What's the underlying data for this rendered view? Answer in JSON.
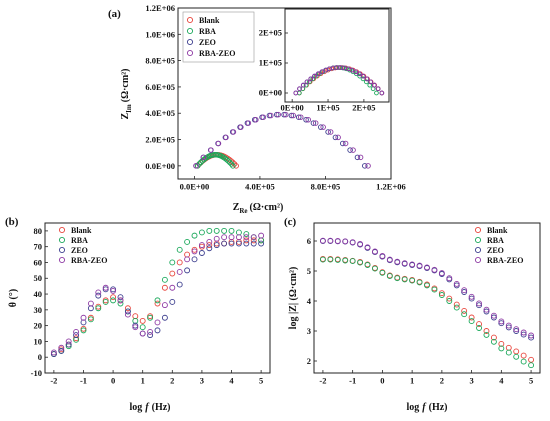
{
  "colors": {
    "Blank": "#e8453c",
    "RBA": "#1aa85a",
    "ZEO": "#3d3f8f",
    "RBA-ZEO": "#8e3aa4"
  },
  "chart_data": [
    {
      "id": "a",
      "panel_label": "(a)",
      "type": "scatter",
      "title": "",
      "xlabel_main": "Z",
      "xlabel_sub": "Re",
      "xlabel_unit": "(Ω·cm²)",
      "ylabel_main": "Z",
      "ylabel_sub": "Im",
      "ylabel_unit": "(Ω·cm²)",
      "xlim": [
        -100000.0,
        1200000.0
      ],
      "ylim": [
        -100000.0,
        1200000.0
      ],
      "xticks": [
        0,
        400000,
        800000,
        1200000
      ],
      "xtick_labels": [
        "0.0E+00",
        "4.0E+05",
        "8.0E+05",
        "1.2E+06"
      ],
      "yticks": [
        0,
        200000,
        400000,
        600000,
        800000,
        1000000,
        1200000
      ],
      "ytick_labels": [
        "0.0E+00",
        "2.0E+05",
        "4.0E+05",
        "6.0E+05",
        "8.0E+05",
        "1.0E+06",
        "1.2E+06"
      ],
      "legend": [
        "Blank",
        "RBA",
        "ZEO",
        "RBA-ZEO"
      ],
      "legend_position": "top-left",
      "arcs": [
        {
          "name": "Blank",
          "re_start": 20000,
          "re_end": 255000,
          "peak": 85000
        },
        {
          "name": "RBA",
          "re_start": 20000,
          "re_end": 235000,
          "peak": 85000
        },
        {
          "name": "ZEO",
          "re_start": 10000,
          "re_end": 1040000,
          "peak": 390000
        },
        {
          "name": "RBA-ZEO",
          "re_start": 10000,
          "re_end": 1060000,
          "peak": 390000
        }
      ],
      "inset": {
        "xlim": [
          -20000.0,
          270000.0
        ],
        "ylim": [
          -30000.0,
          280000.0
        ],
        "xticks": [
          0,
          100000,
          200000
        ],
        "xtick_labels": [
          "0E+00",
          "1E+05",
          "2E+05"
        ],
        "yticks": [
          0,
          100000,
          200000
        ],
        "ytick_labels": [
          "0E+00",
          "1E+05",
          "2E+05"
        ]
      }
    },
    {
      "id": "b",
      "panel_label": "(b)",
      "type": "scatter",
      "title": "",
      "xlabel_main": "log",
      "xlabel_italic": "f",
      "xlabel_unit": "(Hz)",
      "ylabel": "θ (°)",
      "xlim": [
        -2.3,
        5.3
      ],
      "ylim": [
        -10,
        85
      ],
      "xticks": [
        -2,
        -1,
        0,
        1,
        2,
        3,
        4,
        5
      ],
      "xtick_labels": [
        "-2",
        "-1",
        "0",
        "1",
        "2",
        "3",
        "4",
        "5"
      ],
      "yticks": [
        -10,
        0,
        10,
        20,
        30,
        40,
        50,
        60,
        70,
        80
      ],
      "ytick_labels": [
        "-10",
        "0",
        "10",
        "20",
        "30",
        "40",
        "50",
        "60",
        "70",
        "80"
      ],
      "legend": [
        "Blank",
        "RBA",
        "ZEO",
        "RBA-ZEO"
      ],
      "legend_position": "top-left",
      "x": [
        -2,
        -1.75,
        -1.5,
        -1.25,
        -1,
        -0.75,
        -0.5,
        -0.25,
        0,
        0.25,
        0.5,
        0.75,
        1,
        1.25,
        1.5,
        1.75,
        2,
        2.25,
        2.5,
        2.75,
        3,
        3.25,
        3.5,
        3.75,
        4,
        4.25,
        4.5,
        4.75,
        5
      ],
      "series": [
        {
          "name": "Blank",
          "values": [
            2,
            5,
            8,
            12,
            18,
            25,
            32,
            36,
            38,
            36,
            31,
            26,
            23,
            26,
            34,
            44,
            53,
            60,
            65,
            68,
            70,
            71,
            72,
            72,
            73,
            73,
            74,
            74,
            74
          ]
        },
        {
          "name": "RBA",
          "values": [
            2,
            4,
            7,
            11,
            17,
            24,
            31,
            35,
            36,
            34,
            29,
            23,
            19,
            25,
            36,
            49,
            60,
            68,
            73,
            77,
            79,
            80,
            80,
            80,
            80,
            79,
            78,
            76,
            74
          ]
        },
        {
          "name": "ZEO",
          "values": [
            2,
            4,
            8,
            14,
            22,
            31,
            39,
            43,
            43,
            38,
            29,
            20,
            15,
            14,
            17,
            25,
            35,
            46,
            55,
            62,
            66,
            69,
            71,
            72,
            72,
            72,
            72,
            72,
            72
          ]
        },
        {
          "name": "RBA-ZEO",
          "values": [
            3,
            6,
            10,
            16,
            25,
            34,
            41,
            44,
            42,
            36,
            27,
            19,
            15,
            16,
            22,
            33,
            44,
            54,
            62,
            67,
            71,
            73,
            75,
            76,
            76,
            76,
            76,
            76,
            77
          ]
        }
      ]
    },
    {
      "id": "c",
      "panel_label": "(c)",
      "type": "scatter",
      "title": "",
      "xlabel_main": "log",
      "xlabel_italic": "f",
      "xlabel_unit": "(Hz)",
      "ylabel": "log |Z| (Ω·cm²)",
      "xlim": [
        -2.3,
        5.3
      ],
      "ylim": [
        1.6,
        6.6
      ],
      "xticks": [
        -2,
        -1,
        0,
        1,
        2,
        3,
        4,
        5
      ],
      "xtick_labels": [
        "-2",
        "-1",
        "0",
        "1",
        "2",
        "3",
        "4",
        "5"
      ],
      "yticks": [
        2,
        3,
        4,
        5,
        6
      ],
      "ytick_labels": [
        "2",
        "3",
        "4",
        "5",
        "6"
      ],
      "legend": [
        "Blank",
        "RBA",
        "ZEO",
        "RBA-ZEO"
      ],
      "legend_position": "top-right",
      "x": [
        -2,
        -1.75,
        -1.5,
        -1.25,
        -1,
        -0.75,
        -0.5,
        -0.25,
        0,
        0.25,
        0.5,
        0.75,
        1,
        1.25,
        1.5,
        1.75,
        2,
        2.25,
        2.5,
        2.75,
        3,
        3.25,
        3.5,
        3.75,
        4,
        4.25,
        4.5,
        4.75,
        5
      ],
      "series": [
        {
          "name": "Blank",
          "values": [
            5.4,
            5.4,
            5.39,
            5.37,
            5.34,
            5.3,
            5.22,
            5.1,
            4.96,
            4.85,
            4.78,
            4.74,
            4.7,
            4.64,
            4.55,
            4.42,
            4.26,
            4.08,
            3.88,
            3.67,
            3.45,
            3.23,
            3.0,
            2.78,
            2.57,
            2.44,
            2.32,
            2.18,
            2.04
          ]
        },
        {
          "name": "RBA",
          "values": [
            5.38,
            5.38,
            5.37,
            5.35,
            5.33,
            5.28,
            5.2,
            5.08,
            4.94,
            4.83,
            4.76,
            4.72,
            4.68,
            4.62,
            4.52,
            4.38,
            4.2,
            4.0,
            3.78,
            3.56,
            3.33,
            3.1,
            2.87,
            2.64,
            2.42,
            2.28,
            2.14,
            1.98,
            1.86
          ]
        },
        {
          "name": "ZEO",
          "values": [
            6.0,
            6.0,
            5.99,
            5.98,
            5.95,
            5.88,
            5.77,
            5.63,
            5.48,
            5.36,
            5.29,
            5.24,
            5.2,
            5.16,
            5.1,
            5.02,
            4.9,
            4.72,
            4.52,
            4.3,
            4.08,
            3.86,
            3.65,
            3.45,
            3.26,
            3.12,
            3.0,
            2.88,
            2.78
          ]
        },
        {
          "name": "RBA-ZEO",
          "values": [
            6.01,
            6.01,
            6.0,
            5.99,
            5.96,
            5.9,
            5.79,
            5.65,
            5.5,
            5.38,
            5.31,
            5.26,
            5.22,
            5.18,
            5.12,
            5.04,
            4.93,
            4.76,
            4.57,
            4.36,
            4.14,
            3.92,
            3.71,
            3.51,
            3.32,
            3.18,
            3.06,
            2.95,
            2.85
          ]
        }
      ]
    }
  ]
}
